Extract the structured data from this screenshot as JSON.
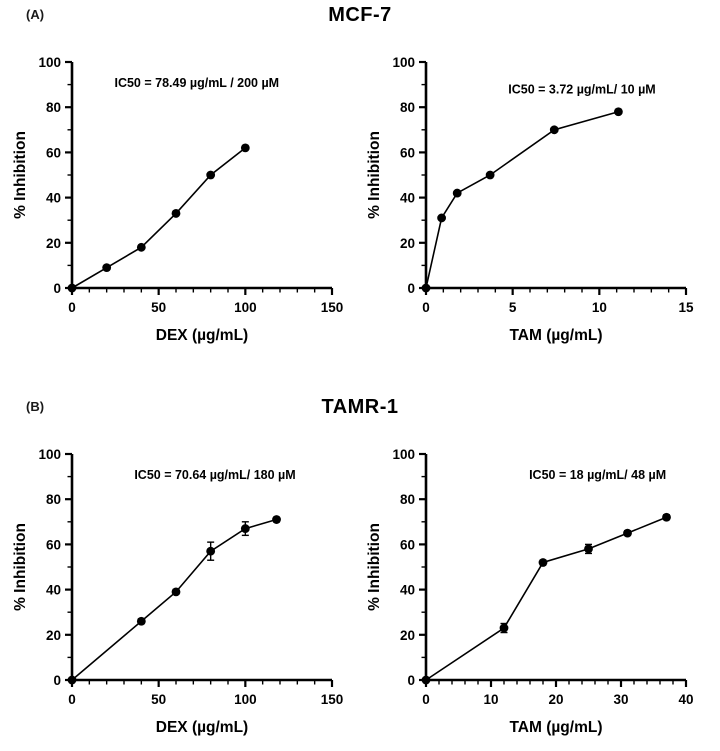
{
  "panels": [
    {
      "label": "(A)",
      "title": "MCF-7"
    },
    {
      "label": "(B)",
      "title": "TAMR-1"
    }
  ],
  "chart_data": [
    {
      "type": "line",
      "panel": "A",
      "title": "MCF-7 DEX dose-response",
      "annotation": "IC50 = 78.49 µg/mL / 200 µM",
      "xlabel": "DEX (µg/mL)",
      "ylabel": "% Inhibition",
      "xlim": [
        0,
        150
      ],
      "ylim": [
        0,
        100
      ],
      "xticks": [
        0,
        50,
        100,
        150
      ],
      "yticks": [
        0,
        20,
        40,
        60,
        80,
        100
      ],
      "xminor": 10,
      "yminor": 10,
      "x": [
        0,
        20,
        40,
        60,
        80,
        100
      ],
      "y": [
        0,
        9,
        18,
        33,
        50,
        62
      ],
      "yerr": [
        0,
        0,
        0,
        0,
        0,
        0
      ],
      "ann_x": 0.48,
      "ann_y": 89,
      "grid": false,
      "legend": "none",
      "marker": "filled-circle",
      "color": "#000000"
    },
    {
      "type": "line",
      "panel": "A",
      "title": "MCF-7 TAM dose-response",
      "annotation": "IC50 = 3.72 µg/mL/ 10 µM",
      "xlabel": "TAM (µg/mL)",
      "ylabel": "% Inhibition",
      "xlim": [
        0,
        15
      ],
      "ylim": [
        0,
        100
      ],
      "xticks": [
        0,
        5,
        10,
        15
      ],
      "yticks": [
        0,
        20,
        40,
        60,
        80,
        100
      ],
      "xminor": 1,
      "yminor": 10,
      "x": [
        0,
        0.9,
        1.8,
        3.7,
        7.4,
        11.1
      ],
      "y": [
        0,
        31,
        42,
        50,
        70,
        78
      ],
      "yerr": [
        0,
        0,
        0,
        0,
        0,
        0
      ],
      "ann_x": 0.6,
      "ann_y": 86,
      "grid": false,
      "legend": "none",
      "marker": "filled-circle",
      "color": "#000000"
    },
    {
      "type": "line",
      "panel": "B",
      "title": "TAMR-1 DEX dose-response",
      "annotation": "IC50 = 70.64 µg/mL/ 180 µM",
      "xlabel": "DEX (µg/mL)",
      "ylabel": "% Inhibition",
      "xlim": [
        0,
        150
      ],
      "ylim": [
        0,
        100
      ],
      "xticks": [
        0,
        50,
        100,
        150
      ],
      "yticks": [
        0,
        20,
        40,
        60,
        80,
        100
      ],
      "xminor": 10,
      "yminor": 10,
      "x": [
        0,
        40,
        60,
        80,
        100,
        118
      ],
      "y": [
        0,
        26,
        39,
        57,
        67,
        71
      ],
      "yerr": [
        0,
        1,
        1,
        4,
        3,
        1
      ],
      "ann_x": 0.55,
      "ann_y": 89,
      "grid": false,
      "legend": "none",
      "marker": "filled-circle",
      "color": "#000000"
    },
    {
      "type": "line",
      "panel": "B",
      "title": "TAMR-1 TAM dose-response",
      "annotation": "IC50 = 18 µg/mL/ 48 µM",
      "xlabel": "TAM (µg/mL)",
      "ylabel": "% Inhibition",
      "xlim": [
        0,
        40
      ],
      "ylim": [
        0,
        100
      ],
      "xticks": [
        0,
        10,
        20,
        30,
        40
      ],
      "yticks": [
        0,
        20,
        40,
        60,
        80,
        100
      ],
      "xminor": 2,
      "yminor": 10,
      "x": [
        0,
        12,
        18,
        25,
        31,
        37
      ],
      "y": [
        0,
        23,
        52,
        58,
        65,
        72
      ],
      "yerr": [
        0,
        2,
        1,
        2,
        1,
        1
      ],
      "ann_x": 0.66,
      "ann_y": 89,
      "grid": false,
      "legend": "none",
      "marker": "filled-circle",
      "color": "#000000"
    }
  ]
}
